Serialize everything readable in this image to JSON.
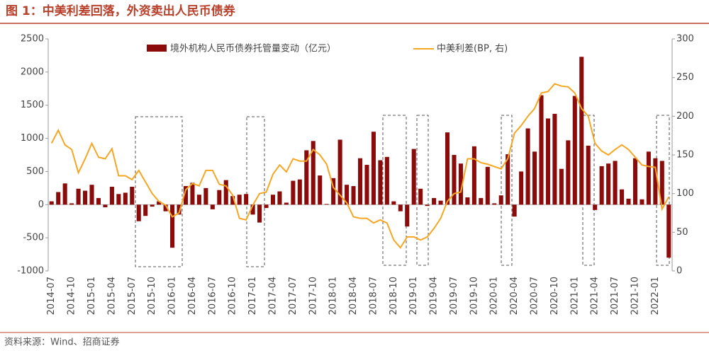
{
  "chart_data": {
    "type": "bar_line",
    "title": "图 1：中美利差回落，外资卖出人民币债券",
    "source": "资料来源：Wind、招商证券",
    "categories": [
      "2014-07",
      null,
      null,
      "2014-10",
      null,
      null,
      "2015-01",
      null,
      null,
      "2015-04",
      null,
      null,
      "2015-07",
      null,
      null,
      "2015-10",
      null,
      null,
      "2016-01",
      null,
      null,
      "2016-04",
      null,
      null,
      "2016-07",
      null,
      null,
      "2016-10",
      null,
      null,
      "2017-01",
      null,
      null,
      "2017-04",
      null,
      null,
      "2017-07",
      null,
      null,
      "2017-10",
      null,
      null,
      "2018-01",
      null,
      null,
      "2018-04",
      null,
      null,
      "2018-07",
      null,
      null,
      "2018-10",
      null,
      null,
      "2019-01",
      null,
      null,
      "2019-04",
      null,
      null,
      "2019-07",
      null,
      null,
      "2019-10",
      null,
      null,
      "2020-01",
      null,
      null,
      "2020-04",
      null,
      null,
      "2020-07",
      null,
      null,
      "2020-10",
      null,
      null,
      "2021-01",
      null,
      null,
      "2021-04",
      null,
      null,
      "2021-07",
      null,
      null,
      "2021-10",
      null,
      null,
      "2022-01",
      null,
      null
    ],
    "series": [
      {
        "name": "境外机构人民币债券托管量变动（亿元）",
        "color": "#8b0a0a",
        "kind": "bar",
        "values": [
          50,
          190,
          320,
          20,
          240,
          210,
          300,
          100,
          -40,
          270,
          160,
          180,
          270,
          -250,
          -170,
          -30,
          50,
          -100,
          -650,
          -150,
          280,
          330,
          150,
          250,
          -70,
          220,
          370,
          130,
          150,
          160,
          -150,
          -270,
          -50,
          150,
          200,
          30,
          360,
          380,
          820,
          960,
          440,
          10,
          400,
          980,
          300,
          280,
          700,
          600,
          1100,
          670,
          720,
          50,
          -100,
          -330,
          840,
          240,
          -20,
          100,
          60,
          1090,
          750,
          620,
          110,
          880,
          100,
          570,
          20,
          140,
          760,
          -180,
          500,
          1150,
          800,
          1650,
          1300,
          1370,
          540,
          970,
          1640,
          2230,
          890,
          -80,
          580,
          620,
          660,
          230,
          90,
          700,
          80,
          800,
          700,
          660,
          -800
        ]
      },
      {
        "name": "中美利差(BP, 右)",
        "color": "#f5a623",
        "kind": "line",
        "axis": "y2",
        "values": [
          165,
          182,
          163,
          157,
          127,
          145,
          165,
          147,
          145,
          158,
          123,
          123,
          118,
          130,
          115,
          100,
          90,
          85,
          70,
          75,
          105,
          113,
          110,
          130,
          130,
          112,
          110,
          98,
          68,
          66,
          85,
          100,
          102,
          125,
          137,
          128,
          145,
          142,
          142,
          157,
          150,
          138,
          108,
          98,
          88,
          70,
          68,
          68,
          62,
          66,
          62,
          40,
          30,
          44,
          44,
          40,
          44,
          55,
          68,
          90,
          100,
          102,
          145,
          145,
          140,
          138,
          135,
          132,
          145,
          178,
          188,
          200,
          210,
          230,
          232,
          242,
          239,
          238,
          230,
          210,
          200,
          165,
          155,
          150,
          157,
          163,
          157,
          147,
          137,
          135,
          134,
          80,
          96
        ]
      }
    ],
    "ylim": [
      -1000,
      2500
    ],
    "yticks": [
      -1000,
      -500,
      0,
      500,
      1000,
      1500,
      2000,
      2500
    ],
    "y2lim": [
      0,
      300
    ],
    "y2ticks": [
      0,
      50,
      100,
      150,
      200,
      250,
      300
    ]
  }
}
